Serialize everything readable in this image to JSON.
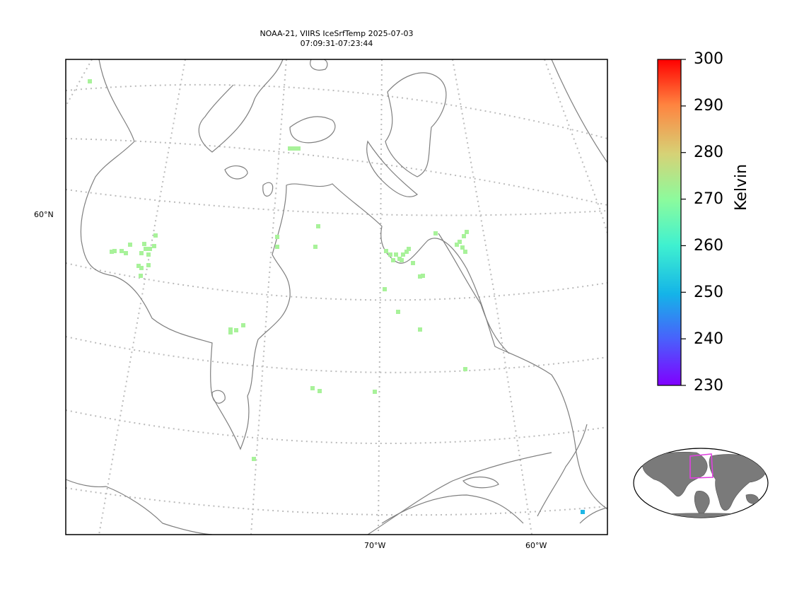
{
  "title": {
    "line1": "NOAA-21, VIIRS IceSrfTemp 2025-07-03",
    "line2": "07:09:31-07:23:44"
  },
  "axes": {
    "lat_label": "60°N",
    "lon_labels": [
      "70°W",
      "60°W"
    ]
  },
  "colorbar": {
    "unit": "Kelvin",
    "min": 230,
    "max": 300,
    "ticks": [
      "300",
      "290",
      "280",
      "270",
      "260",
      "250",
      "240",
      "230"
    ],
    "colormap": "rainbow"
  },
  "chart_data": {
    "type": "scatter",
    "title": "NOAA-21, VIIRS IceSrfTemp 2025-07-03 07:09:31-07:23:44",
    "variable": "IceSrfTemp",
    "units": "Kelvin",
    "color_range": [
      230,
      300
    ],
    "dominant_value_range": [
      266,
      270
    ],
    "outlier_values": [
      250
    ],
    "grid": true,
    "colors": {
      "points": "#a8f29a",
      "outlier": "#1fb7e6",
      "coast": "#7f7f7f",
      "grid": "#bbbbbb",
      "inset_box": "#e040e0"
    }
  },
  "inset": {
    "name": "globe-locator"
  }
}
